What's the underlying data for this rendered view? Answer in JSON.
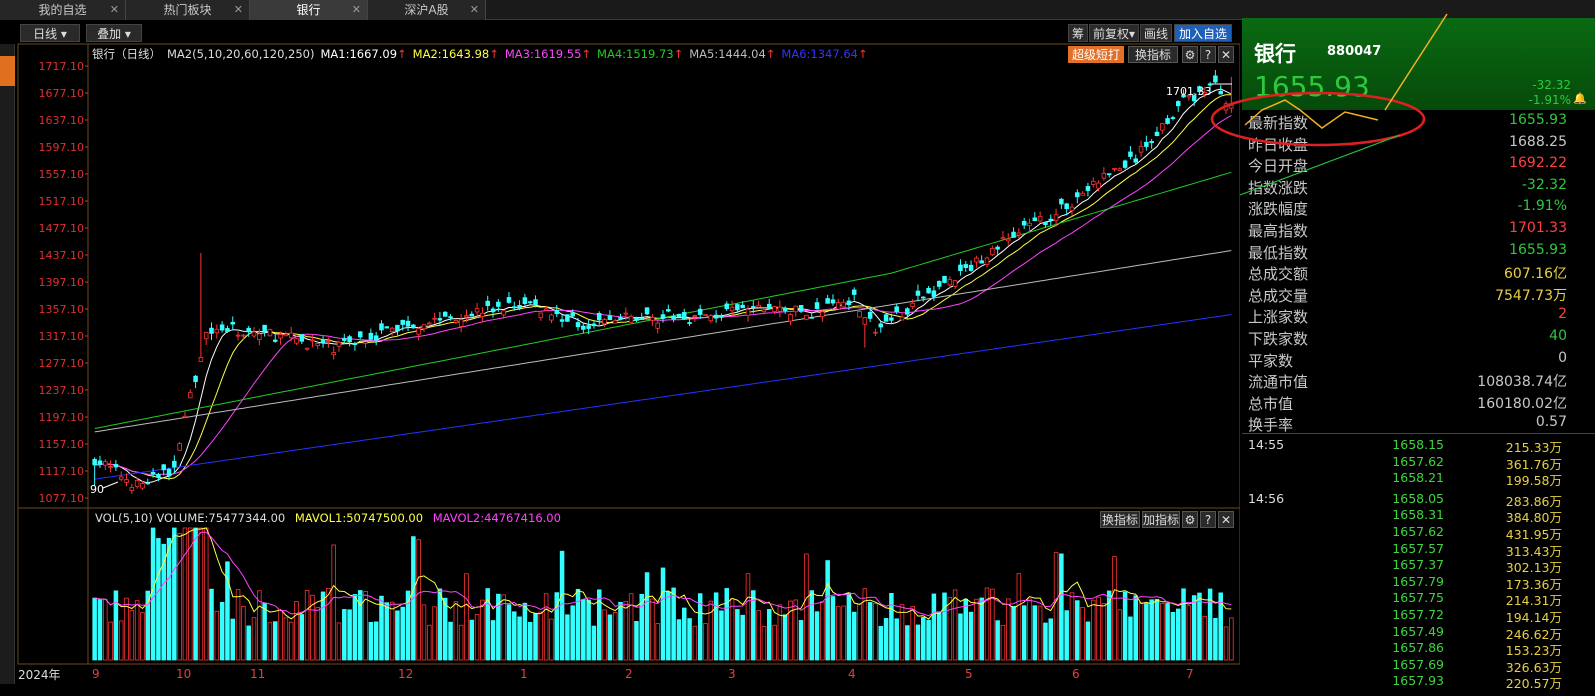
{
  "tabs": [
    {
      "label": "我的自选"
    },
    {
      "label": "热门板块"
    },
    {
      "label": "银行"
    },
    {
      "label": "深沪A股"
    }
  ],
  "toolbar": {
    "period": "日线",
    "overlay": "叠加",
    "chip": "筹",
    "adjust": "前复权",
    "draw": "画线",
    "add_fav": "加入自选",
    "super": "超级短打",
    "switch_ind": "换指标"
  },
  "legend": {
    "name": "银行（日线）",
    "ma_spec": "MA2(5,10,20,60,120,250)",
    "ma1": "MA1:1667.09",
    "ma2": "MA2:1643.98",
    "ma3": "MA3:1619.55",
    "ma4": "MA4:1519.73",
    "ma5": "MA5:1444.04",
    "ma6": "MA6:1347.64",
    "arrow": "↑"
  },
  "vol_legend": {
    "spec": "VOL(5,10)",
    "volume": "VOLUME:75477344.00",
    "mavol1": "MAVOL1:50747500.00",
    "mavol2": "MAVOL2:44767416.00",
    "switch": "换指标",
    "add": "加指标"
  },
  "chart_data": {
    "type": "candlestick",
    "y_ticks": [
      "1717.10",
      "1677.10",
      "1637.10",
      "1597.10",
      "1557.10",
      "1517.10",
      "1477.10",
      "1437.10",
      "1397.10",
      "1357.10",
      "1317.10",
      "1277.10",
      "1237.10",
      "1197.10",
      "1157.10",
      "1117.10",
      "1077.10"
    ],
    "ylim": [
      1077.1,
      1717.1
    ],
    "high_label": "1701.33",
    "low_label": "90",
    "year": "2024年",
    "months": [
      "9",
      "10",
      "11",
      "12",
      "1",
      "2",
      "3",
      "4",
      "5",
      "6",
      "7"
    ],
    "colors": {
      "up": "#ff3333",
      "down": "#33ffff",
      "ma1": "#ffffff",
      "ma2": "#ffff44",
      "ma3": "#ff44ff",
      "ma4": "#22cc22",
      "ma5": "#bbbbbb",
      "ma6": "#2233ff"
    }
  },
  "quote": {
    "name": "银行",
    "code": "880047",
    "price": "1655.93",
    "change": "-32.32",
    "pct": "-1.91%",
    "stats": [
      {
        "label": "最新指数",
        "value": "1655.93",
        "color": "#2ec840"
      },
      {
        "label": "昨日收盘",
        "value": "1688.25",
        "color": "#c8c8c8"
      },
      {
        "label": "今日开盘",
        "value": "1692.22",
        "color": "#ff4040"
      },
      {
        "label": "指数涨跌",
        "value": "-32.32",
        "color": "#2ec840"
      },
      {
        "label": "涨跌幅度",
        "value": "-1.91%",
        "color": "#2ec840"
      },
      {
        "label": "最高指数",
        "value": "1701.33",
        "color": "#ff4040"
      },
      {
        "label": "最低指数",
        "value": "1655.93",
        "color": "#2ec840"
      },
      {
        "label": "总成交额",
        "value": "607.16亿",
        "color": "#e8d040"
      },
      {
        "label": "总成交量",
        "value": "7547.73万",
        "color": "#e8d040"
      },
      {
        "label": "上涨家数",
        "value": "2",
        "color": "#ff4040"
      },
      {
        "label": "下跌家数",
        "value": "40",
        "color": "#2ec840"
      },
      {
        "label": "平家数",
        "value": "0",
        "color": "#c8c8c8"
      },
      {
        "label": "流通市值",
        "value": "108038.74亿",
        "color": "#c8c8c8"
      },
      {
        "label": "总市值",
        "value": "160180.02亿",
        "color": "#c8c8c8"
      },
      {
        "label": "换手率",
        "value": "0.57",
        "color": "#c8c8c8"
      }
    ]
  },
  "ticks": [
    {
      "time": "14:55",
      "price": "1658.15",
      "vol": "215.33万"
    },
    {
      "time": "",
      "price": "1657.62",
      "vol": "361.76万"
    },
    {
      "time": "",
      "price": "1658.21",
      "vol": "199.58万"
    },
    {
      "time": "14:56",
      "price": "1658.05",
      "vol": "283.86万"
    },
    {
      "time": "",
      "price": "1658.31",
      "vol": "384.80万"
    },
    {
      "time": "",
      "price": "1657.62",
      "vol": "431.95万"
    },
    {
      "time": "",
      "price": "1657.57",
      "vol": "313.43万"
    },
    {
      "time": "",
      "price": "1657.37",
      "vol": "302.13万"
    },
    {
      "time": "",
      "price": "1657.79",
      "vol": "173.36万"
    },
    {
      "time": "",
      "price": "1657.75",
      "vol": "214.31万"
    },
    {
      "time": "",
      "price": "1657.72",
      "vol": "194.14万"
    },
    {
      "time": "",
      "price": "1657.49",
      "vol": "246.62万"
    },
    {
      "time": "",
      "price": "1657.86",
      "vol": "153.23万"
    },
    {
      "time": "",
      "price": "1657.69",
      "vol": "326.63万"
    },
    {
      "time": "",
      "price": "1657.93",
      "vol": "220.57万"
    }
  ]
}
